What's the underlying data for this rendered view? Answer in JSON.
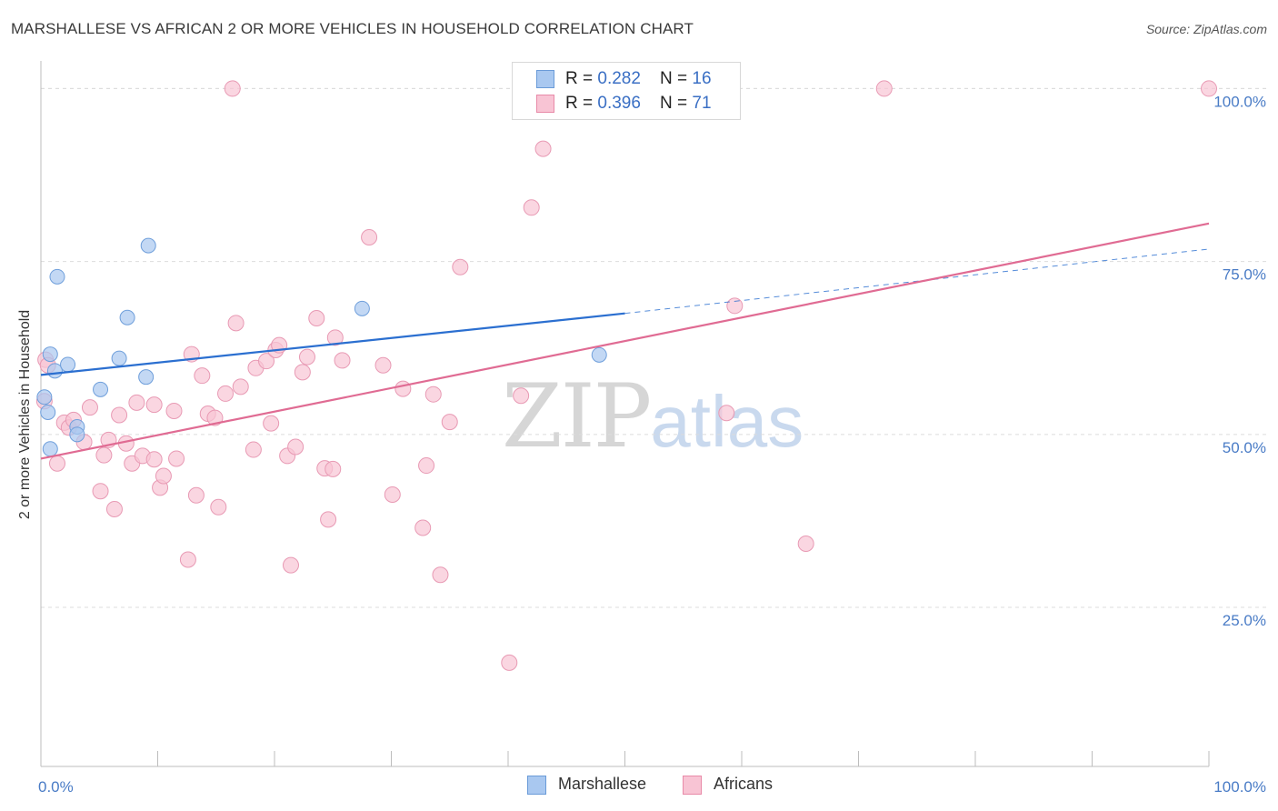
{
  "title": "MARSHALLESE VS AFRICAN 2 OR MORE VEHICLES IN HOUSEHOLD CORRELATION CHART",
  "source": "Source: ZipAtlas.com",
  "watermark": {
    "zip": "ZIP",
    "atlas": "atlas"
  },
  "legend_top": {
    "rows": [
      {
        "r_label": "R = ",
        "r_value": "0.282",
        "n_label": "N = ",
        "n_value": "16",
        "color": "#a9c8f0",
        "border": "#6a9bd8"
      },
      {
        "r_label": "R = ",
        "r_value": "0.396",
        "n_label": "N = ",
        "n_value": "71",
        "color": "#f8c4d4",
        "border": "#e88aa8"
      }
    ]
  },
  "legend_bottom": [
    "Marshallese",
    "Africans"
  ],
  "chart_data": {
    "type": "scatter",
    "title": "MARSHALLESE VS AFRICAN 2 OR MORE VEHICLES IN HOUSEHOLD CORRELATION CHART",
    "xlabel": "",
    "ylabel": "2 or more Vehicles in Household",
    "xlim": [
      0,
      100
    ],
    "ylim": [
      2,
      104
    ],
    "x_tick_labels": [
      "0.0%",
      "100.0%"
    ],
    "y_ticks": [
      25,
      50,
      75,
      100
    ],
    "y_tick_labels": [
      "25.0%",
      "50.0%",
      "75.0%",
      "100.0%"
    ],
    "colors": {
      "marshallese": "#a9c8f0",
      "marshallese_edge": "#6f9fdb",
      "marshallese_line": "#2b6fd0",
      "africans": "#f8c4d4",
      "africans_edge": "#e89ab4",
      "africans_line": "#e06b93"
    },
    "series": [
      {
        "name": "Marshallese",
        "points": [
          [
            0.3,
            55.4
          ],
          [
            0.6,
            53.2
          ],
          [
            0.8,
            61.6
          ],
          [
            0.8,
            47.9
          ],
          [
            1.2,
            59.2
          ],
          [
            1.4,
            72.8
          ],
          [
            2.3,
            60.1
          ],
          [
            3.1,
            51.1
          ],
          [
            3.1,
            50.0
          ],
          [
            5.1,
            56.5
          ],
          [
            6.7,
            61.0
          ],
          [
            7.4,
            66.9
          ],
          [
            9.0,
            58.3
          ],
          [
            9.2,
            77.3
          ],
          [
            27.5,
            68.2
          ],
          [
            47.8,
            61.5
          ]
        ],
        "trend": {
          "x0": 0,
          "y0": 58.6,
          "x1": 50,
          "y1": 67.5,
          "dash_x1": 100,
          "dash_y1": 76.8
        }
      },
      {
        "name": "Africans",
        "points": [
          [
            0.3,
            54.8
          ],
          [
            0.4,
            60.8
          ],
          [
            1.4,
            45.8
          ],
          [
            2.0,
            51.7
          ],
          [
            2.4,
            51.0
          ],
          [
            2.8,
            52.1
          ],
          [
            3.7,
            48.9
          ],
          [
            4.2,
            53.9
          ],
          [
            5.1,
            41.8
          ],
          [
            5.4,
            47.0
          ],
          [
            5.8,
            49.2
          ],
          [
            6.3,
            39.2
          ],
          [
            6.7,
            52.8
          ],
          [
            7.3,
            48.7
          ],
          [
            7.8,
            45.8
          ],
          [
            8.2,
            54.6
          ],
          [
            8.7,
            46.9
          ],
          [
            9.7,
            46.4
          ],
          [
            9.7,
            54.3
          ],
          [
            10.2,
            42.3
          ],
          [
            10.5,
            44.0
          ],
          [
            11.4,
            53.4
          ],
          [
            11.6,
            46.5
          ],
          [
            12.6,
            31.9
          ],
          [
            12.9,
            61.6
          ],
          [
            13.3,
            41.2
          ],
          [
            13.8,
            58.5
          ],
          [
            14.3,
            53.0
          ],
          [
            14.9,
            52.4
          ],
          [
            15.2,
            39.5
          ],
          [
            15.8,
            55.9
          ],
          [
            16.4,
            100.0
          ],
          [
            16.7,
            66.1
          ],
          [
            17.1,
            56.9
          ],
          [
            18.2,
            47.8
          ],
          [
            18.4,
            59.6
          ],
          [
            19.3,
            60.6
          ],
          [
            19.7,
            51.6
          ],
          [
            20.1,
            62.2
          ],
          [
            20.4,
            62.9
          ],
          [
            21.1,
            46.9
          ],
          [
            21.4,
            31.1
          ],
          [
            21.8,
            48.2
          ],
          [
            22.4,
            59.0
          ],
          [
            22.8,
            61.2
          ],
          [
            23.6,
            66.8
          ],
          [
            24.3,
            45.1
          ],
          [
            24.6,
            37.7
          ],
          [
            25.0,
            45.0
          ],
          [
            25.2,
            64.0
          ],
          [
            25.8,
            60.7
          ],
          [
            28.1,
            78.5
          ],
          [
            29.3,
            60.0
          ],
          [
            30.1,
            41.3
          ],
          [
            31.0,
            56.6
          ],
          [
            32.7,
            36.5
          ],
          [
            33.0,
            45.5
          ],
          [
            33.6,
            55.8
          ],
          [
            34.2,
            29.7
          ],
          [
            35.0,
            51.8
          ],
          [
            35.9,
            74.2
          ],
          [
            40.1,
            17.0
          ],
          [
            41.1,
            55.6
          ],
          [
            42.0,
            82.8
          ],
          [
            43.0,
            91.3
          ],
          [
            58.7,
            53.1
          ],
          [
            59.4,
            68.6
          ],
          [
            65.5,
            34.2
          ],
          [
            72.2,
            100.0
          ],
          [
            100.0,
            100.0
          ],
          [
            0.6,
            60.0
          ]
        ],
        "trend": {
          "x0": 0,
          "y0": 46.5,
          "x1": 100,
          "y1": 80.5
        }
      }
    ]
  }
}
